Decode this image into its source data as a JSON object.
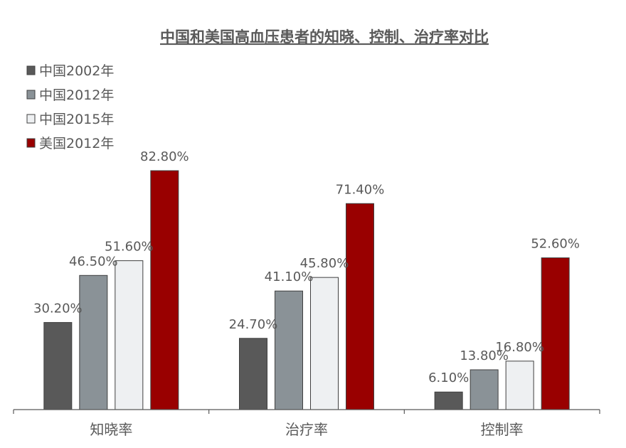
{
  "chart_data": {
    "type": "bar",
    "title": "中国和美国高血压患者的知晓、控制、治疗率对比",
    "xlabel": "",
    "ylabel": "",
    "ylim": [
      0,
      90
    ],
    "grid": false,
    "legend_position": "top-left",
    "categories": [
      "知晓率",
      "治疗率",
      "控制率"
    ],
    "series": [
      {
        "name": "中国2002年",
        "color": "#595959",
        "values": [
          30.2,
          24.7,
          6.1
        ],
        "labels": [
          "30.20%",
          "24.70%",
          "6.10%"
        ]
      },
      {
        "name": "中国2012年",
        "color": "#8a9297",
        "values": [
          46.5,
          41.1,
          13.8
        ],
        "labels": [
          "46.50%",
          "41.10%",
          "13.80%"
        ]
      },
      {
        "name": "中国2015年",
        "color": "#eef0f2",
        "values": [
          51.6,
          45.8,
          16.8
        ],
        "labels": [
          "51.60%",
          "45.80%",
          "16.80%"
        ]
      },
      {
        "name": "美国2012年",
        "color": "#990000",
        "values": [
          82.8,
          71.4,
          52.6
        ],
        "labels": [
          "82.80%",
          "71.40%",
          "52.60%"
        ]
      }
    ]
  }
}
